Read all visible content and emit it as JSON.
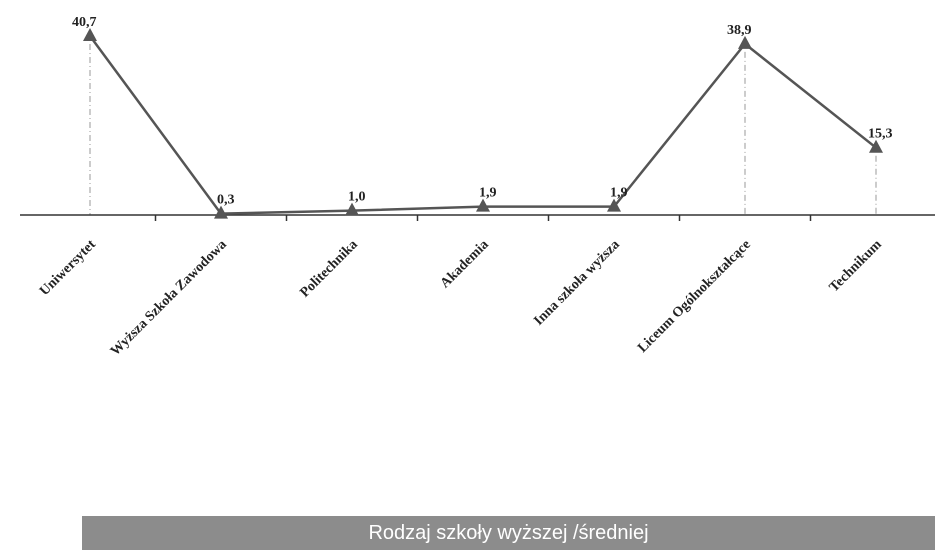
{
  "chart_data": {
    "type": "line",
    "categories": [
      "Uniwersytet",
      "Wyższa Szkoła Zawodowa",
      "Politechnika",
      "Akademia",
      "Inna szkoła wyższa",
      "Liceum Ogólnokształcące",
      "Technikum"
    ],
    "values": [
      40.7,
      0.3,
      1.0,
      1.9,
      1.9,
      38.9,
      15.3
    ],
    "value_labels": [
      "40,7",
      "0,3",
      "1,0",
      "1,9",
      "1,9",
      "38,9",
      "15,3"
    ],
    "xlabel": "Rodzaj szkoły wyższej /średniej",
    "ylabel": "",
    "ylim": [
      0,
      45
    ],
    "grid": false,
    "marker": "triangle",
    "colors": {
      "line": "#555555",
      "axis_label_bar": "#8c8c8c"
    }
  }
}
